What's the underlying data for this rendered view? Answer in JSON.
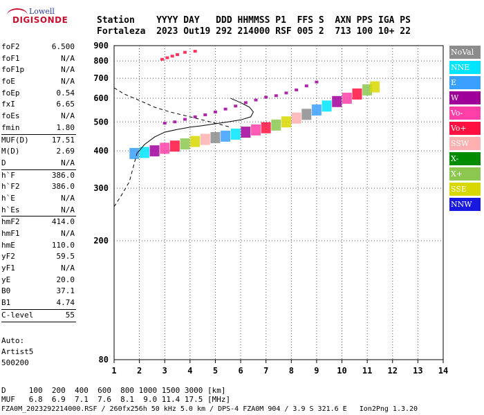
{
  "logo": {
    "line1": "Lowell",
    "line2": "DIGISONDE"
  },
  "header": {
    "row1": "Station    YYYY DAY   DDD HHMMSS P1  FFS S  AXN PPS IGA PS",
    "row2": "Fortaleza  2023 Out19 292 214000 RSF 005 2  713 100 10+ 22"
  },
  "params": [
    {
      "name": "foF2",
      "value": "6.500"
    },
    {
      "name": "foF1",
      "value": "N/A"
    },
    {
      "name": "foF1p",
      "value": "N/A"
    },
    {
      "name": "foE",
      "value": "N/A"
    },
    {
      "name": "foEp",
      "value": "0.54"
    },
    {
      "name": "fxI",
      "value": "6.65"
    },
    {
      "name": "foEs",
      "value": "N/A"
    },
    {
      "name": "fmin",
      "value": "1.80",
      "sep_after": true
    },
    {
      "name": "MUF(D)",
      "value": "17.51"
    },
    {
      "name": "M(D)",
      "value": "2.69"
    },
    {
      "name": "D",
      "value": "N/A",
      "sep_after": true
    },
    {
      "name": "h`F",
      "value": "386.0"
    },
    {
      "name": "h`F2",
      "value": "386.0"
    },
    {
      "name": "h`E",
      "value": "N/A"
    },
    {
      "name": "h`Es",
      "value": "N/A",
      "sep_after": true
    },
    {
      "name": "hmF2",
      "value": "414.0"
    },
    {
      "name": "hmF1",
      "value": "N/A"
    },
    {
      "name": "hmE",
      "value": "110.0"
    },
    {
      "name": "yF2",
      "value": "59.5"
    },
    {
      "name": "yF1",
      "value": "N/A"
    },
    {
      "name": "yE",
      "value": "20.0"
    },
    {
      "name": "B0",
      "value": "37.1"
    },
    {
      "name": "B1",
      "value": "4.74",
      "sep_after": true
    },
    {
      "name": "C-level",
      "value": "55",
      "sep_after": true
    }
  ],
  "auto": [
    "Auto:",
    "Artist5",
    "500200"
  ],
  "legend": [
    {
      "label": "NoVal",
      "color": "#8c8c8c"
    },
    {
      "label": "NNE",
      "color": "#00e5ff"
    },
    {
      "label": "E",
      "color": "#3aa0ff"
    },
    {
      "label": "W",
      "color": "#a0009a"
    },
    {
      "label": "Vo-",
      "color": "#ff3fa8"
    },
    {
      "label": "Vo+",
      "color": "#ff1040"
    },
    {
      "label": "SSW",
      "color": "#ffb0b0"
    },
    {
      "label": "X-",
      "color": "#008c00"
    },
    {
      "label": "X+",
      "color": "#8cc850"
    },
    {
      "label": "SSE",
      "color": "#d8d800"
    },
    {
      "label": "NNW",
      "color": "#1818e0"
    }
  ],
  "footer": {
    "row1": "D     100  200  400  600  800 1000 1500 3000 [km]",
    "row2": "MUF   6.8  6.9  7.1  7.6  8.1  9.0 11.4 17.5 [MHz]",
    "row3": "FZA0M_2023292214000.RSF / 260fx256h 50 kHz 5.0 km / DPS-4 FZA0M 904 / 3.9 S 321.6 E   Ion2Png 1.3.20"
  },
  "chart_data": {
    "type": "scatter",
    "xlim": [
      1,
      14
    ],
    "ylim": [
      80,
      900
    ],
    "xticks": [
      1,
      2,
      3,
      4,
      5,
      6,
      7,
      8,
      9,
      10,
      11,
      12,
      13,
      14
    ],
    "yticks": [
      80,
      200,
      300,
      400,
      500,
      600,
      700,
      800,
      900
    ],
    "grid": "dotted",
    "traces": [
      {
        "name": "F-trace",
        "color_key": "mixed",
        "points": [
          [
            1.8,
            392
          ],
          [
            2.2,
            395
          ],
          [
            2.6,
            400
          ],
          [
            3.0,
            408
          ],
          [
            3.4,
            415
          ],
          [
            3.8,
            422
          ],
          [
            4.2,
            430
          ],
          [
            4.6,
            437
          ],
          [
            5.0,
            443
          ],
          [
            5.4,
            448
          ],
          [
            5.8,
            455
          ],
          [
            6.2,
            462
          ],
          [
            6.6,
            470
          ],
          [
            7.0,
            478
          ],
          [
            7.4,
            488
          ],
          [
            7.8,
            500
          ],
          [
            8.2,
            515
          ],
          [
            8.6,
            530
          ],
          [
            9.0,
            548
          ],
          [
            9.4,
            565
          ],
          [
            9.8,
            585
          ],
          [
            10.2,
            600
          ],
          [
            10.6,
            620
          ],
          [
            11.0,
            640
          ],
          [
            11.3,
            655
          ]
        ]
      },
      {
        "name": "X-trace",
        "color_key": "W",
        "points": [
          [
            3.0,
            495
          ],
          [
            3.4,
            500
          ],
          [
            3.8,
            510
          ],
          [
            4.2,
            520
          ],
          [
            4.6,
            528
          ],
          [
            5.0,
            540
          ],
          [
            5.4,
            552
          ],
          [
            5.8,
            565
          ],
          [
            6.2,
            580
          ],
          [
            6.6,
            592
          ],
          [
            7.0,
            605
          ],
          [
            7.4,
            612
          ],
          [
            7.8,
            625
          ],
          [
            8.2,
            640
          ],
          [
            8.6,
            660
          ],
          [
            9.0,
            680
          ]
        ]
      },
      {
        "name": "multi-hop",
        "color_key": "Vo+",
        "points": [
          [
            2.9,
            810
          ],
          [
            3.1,
            820
          ],
          [
            3.3,
            830
          ],
          [
            3.5,
            840
          ],
          [
            3.8,
            855
          ],
          [
            4.2,
            862
          ]
        ]
      }
    ],
    "profile_solid": [
      [
        1.9,
        392
      ],
      [
        2.2,
        420
      ],
      [
        2.6,
        445
      ],
      [
        3.0,
        462
      ],
      [
        3.5,
        472
      ],
      [
        4.0,
        480
      ],
      [
        4.5,
        486
      ],
      [
        5.0,
        493
      ],
      [
        5.5,
        500
      ],
      [
        6.0,
        508
      ],
      [
        6.4,
        520
      ],
      [
        6.5,
        540
      ],
      [
        6.35,
        560
      ],
      [
        6.0,
        580
      ],
      [
        5.6,
        600
      ]
    ],
    "profile_dashed": [
      [
        1.0,
        260
      ],
      [
        1.3,
        285
      ],
      [
        1.6,
        315
      ],
      [
        1.9,
        392
      ]
    ],
    "profile_dashed_upper": [
      [
        1.0,
        650
      ],
      [
        1.4,
        620
      ],
      [
        2.0,
        590
      ],
      [
        2.6,
        560
      ],
      [
        3.2,
        540
      ],
      [
        4.0,
        520
      ],
      [
        4.6,
        505
      ],
      [
        5.2,
        490
      ],
      [
        5.6,
        480
      ]
    ]
  }
}
